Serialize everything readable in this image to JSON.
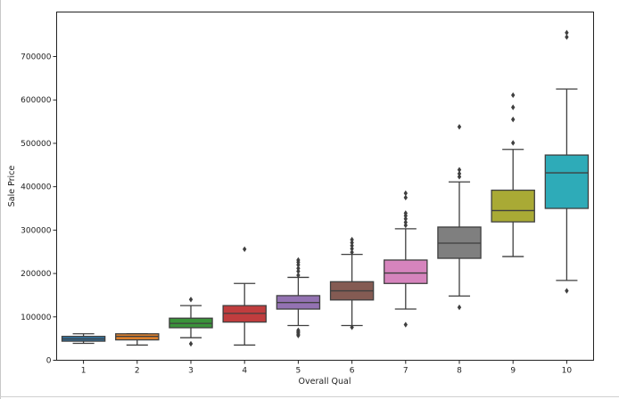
{
  "chart_data": {
    "type": "boxplot",
    "xlabel": "Overall Qual",
    "ylabel": "Sale Price",
    "ylim": [
      0,
      770000
    ],
    "y_ticks": [
      0,
      100000,
      200000,
      300000,
      400000,
      500000,
      600000,
      700000
    ],
    "y_tick_labels": [
      "0",
      "100000",
      "200000",
      "300000",
      "400000",
      "500000",
      "600000",
      "700000"
    ],
    "grid": false,
    "legend": "none",
    "categories": [
      "1",
      "2",
      "3",
      "4",
      "5",
      "6",
      "7",
      "8",
      "9",
      "10"
    ],
    "boxes": [
      {
        "category": "1",
        "color": "#3274a1",
        "whisker_low": 39000,
        "q1": 44000,
        "median": 49000,
        "q3": 55000,
        "whisker_high": 61000,
        "outliers": []
      },
      {
        "category": "2",
        "color": "#e1812c",
        "whisker_low": 35000,
        "q1": 47000,
        "median": 55000,
        "q3": 61000,
        "whisker_high": 61000,
        "outliers": []
      },
      {
        "category": "3",
        "color": "#3a923a",
        "whisker_low": 52000,
        "q1": 75000,
        "median": 85000,
        "q3": 97000,
        "whisker_high": 126000,
        "outliers": [
          140000,
          38000
        ]
      },
      {
        "category": "4",
        "color": "#c03d3e",
        "whisker_low": 35000,
        "q1": 88000,
        "median": 108000,
        "q3": 126000,
        "whisker_high": 177000,
        "outliers": [
          256000
        ]
      },
      {
        "category": "5",
        "color": "#9372b2",
        "whisker_low": 80000,
        "q1": 118000,
        "median": 133000,
        "q3": 149000,
        "whisker_high": 191000,
        "outliers": [
          196000,
          205000,
          212000,
          220000,
          226000,
          231000,
          57000,
          60000,
          63000,
          66000,
          69000
        ]
      },
      {
        "category": "6",
        "color": "#845b53",
        "whisker_low": 80000,
        "q1": 139000,
        "median": 160000,
        "q3": 181000,
        "whisker_high": 244000,
        "outliers": [
          249000,
          257000,
          264000,
          271000,
          278000,
          76000
        ]
      },
      {
        "category": "7",
        "color": "#d684bd",
        "whisker_low": 118000,
        "q1": 177000,
        "median": 201000,
        "q3": 231000,
        "whisker_high": 303000,
        "outliers": [
          311000,
          318000,
          326000,
          333000,
          339000,
          375000,
          385000,
          82000
        ]
      },
      {
        "category": "8",
        "color": "#7f7f7f",
        "whisker_low": 148000,
        "q1": 235000,
        "median": 270000,
        "q3": 307000,
        "whisker_high": 411000,
        "outliers": [
          423000,
          430000,
          439000,
          538000,
          122000
        ]
      },
      {
        "category": "9",
        "color": "#a9aa35",
        "whisker_low": 239000,
        "q1": 319000,
        "median": 345000,
        "q3": 392000,
        "whisker_high": 486000,
        "outliers": [
          501000,
          555000,
          583000,
          611000
        ]
      },
      {
        "category": "10",
        "color": "#2eabb8",
        "whisker_low": 184000,
        "q1": 350000,
        "median": 432000,
        "q3": 473000,
        "whisker_high": 625000,
        "outliers": [
          745000,
          755000,
          160000
        ]
      }
    ]
  }
}
